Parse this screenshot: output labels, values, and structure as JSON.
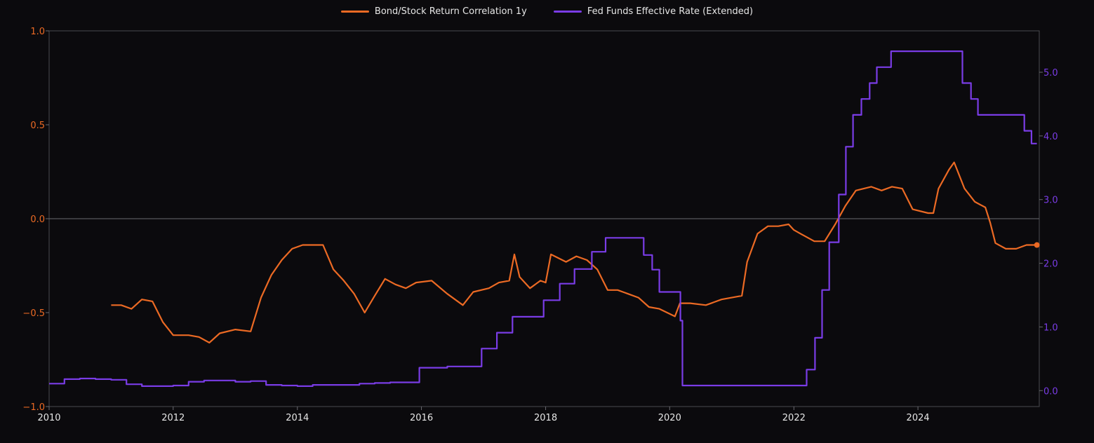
{
  "chart_data": {
    "type": "line",
    "title": "",
    "xlabel": "",
    "ylabel": "",
    "x_axis": {
      "type": "date",
      "range": [
        "2010-01-01",
        "2025-12-15"
      ],
      "tick_labels": [
        "2010",
        "2012",
        "2014",
        "2016",
        "2018",
        "2020",
        "2022",
        "2024"
      ]
    },
    "y_left": {
      "range": [
        -1.0,
        1.0
      ],
      "tick_values": [
        -1.0,
        -0.5,
        0.0,
        0.5,
        1.0
      ],
      "tick_labels": [
        "−1.0",
        "−0.5",
        "0.0",
        "0.5",
        "1.0"
      ],
      "color": "#ec6a24"
    },
    "y_right": {
      "range": [
        -0.25,
        5.65
      ],
      "tick_values": [
        0,
        1,
        2,
        3,
        4,
        5
      ],
      "tick_labels": [
        "0.0",
        "1.0",
        "2.0",
        "3.0",
        "4.0",
        "5.0"
      ],
      "color": "#7a3ce6"
    },
    "zero_line": 0.0,
    "grid": false,
    "legend_position": "top-center",
    "series": [
      {
        "name": "Bond/Stock Return Correlation 1y",
        "axis": "left",
        "color": "#ec6a24",
        "points": [
          [
            "2011-01-01",
            -0.46
          ],
          [
            "2011-03-01",
            -0.46
          ],
          [
            "2011-05-01",
            -0.48
          ],
          [
            "2011-07-01",
            -0.43
          ],
          [
            "2011-09-01",
            -0.44
          ],
          [
            "2011-11-01",
            -0.55
          ],
          [
            "2012-01-01",
            -0.62
          ],
          [
            "2012-04-01",
            -0.62
          ],
          [
            "2012-06-01",
            -0.63
          ],
          [
            "2012-08-01",
            -0.66
          ],
          [
            "2012-10-01",
            -0.61
          ],
          [
            "2013-01-01",
            -0.59
          ],
          [
            "2013-04-01",
            -0.6
          ],
          [
            "2013-06-01",
            -0.42
          ],
          [
            "2013-08-01",
            -0.3
          ],
          [
            "2013-10-01",
            -0.22
          ],
          [
            "2013-12-01",
            -0.16
          ],
          [
            "2014-02-01",
            -0.14
          ],
          [
            "2014-06-01",
            -0.14
          ],
          [
            "2014-08-01",
            -0.27
          ],
          [
            "2014-10-01",
            -0.33
          ],
          [
            "2014-12-01",
            -0.4
          ],
          [
            "2015-02-01",
            -0.5
          ],
          [
            "2015-04-01",
            -0.41
          ],
          [
            "2015-06-01",
            -0.32
          ],
          [
            "2015-08-01",
            -0.35
          ],
          [
            "2015-10-01",
            -0.37
          ],
          [
            "2015-12-01",
            -0.34
          ],
          [
            "2016-03-01",
            -0.33
          ],
          [
            "2016-06-01",
            -0.4
          ],
          [
            "2016-09-01",
            -0.46
          ],
          [
            "2016-11-01",
            -0.39
          ],
          [
            "2017-02-01",
            -0.37
          ],
          [
            "2017-04-01",
            -0.34
          ],
          [
            "2017-06-01",
            -0.33
          ],
          [
            "2017-07-01",
            -0.19
          ],
          [
            "2017-08-01",
            -0.31
          ],
          [
            "2017-10-01",
            -0.37
          ],
          [
            "2017-12-01",
            -0.33
          ],
          [
            "2018-01-01",
            -0.34
          ],
          [
            "2018-02-01",
            -0.19
          ],
          [
            "2018-05-01",
            -0.23
          ],
          [
            "2018-07-01",
            -0.2
          ],
          [
            "2018-09-01",
            -0.22
          ],
          [
            "2018-11-01",
            -0.27
          ],
          [
            "2019-01-01",
            -0.38
          ],
          [
            "2019-03-01",
            -0.38
          ],
          [
            "2019-05-01",
            -0.4
          ],
          [
            "2019-07-01",
            -0.42
          ],
          [
            "2019-09-01",
            -0.47
          ],
          [
            "2019-11-01",
            -0.48
          ],
          [
            "2020-02-01",
            -0.52
          ],
          [
            "2020-03-01",
            -0.45
          ],
          [
            "2020-05-01",
            -0.45
          ],
          [
            "2020-08-01",
            -0.46
          ],
          [
            "2020-11-01",
            -0.43
          ],
          [
            "2021-03-01",
            -0.41
          ],
          [
            "2021-04-01",
            -0.23
          ],
          [
            "2021-06-01",
            -0.08
          ],
          [
            "2021-08-01",
            -0.04
          ],
          [
            "2021-10-01",
            -0.04
          ],
          [
            "2021-12-01",
            -0.03
          ],
          [
            "2022-01-01",
            -0.06
          ],
          [
            "2022-03-01",
            -0.09
          ],
          [
            "2022-05-01",
            -0.12
          ],
          [
            "2022-07-01",
            -0.12
          ],
          [
            "2022-09-01",
            -0.03
          ],
          [
            "2022-11-01",
            0.07
          ],
          [
            "2023-01-01",
            0.15
          ],
          [
            "2023-04-01",
            0.17
          ],
          [
            "2023-06-01",
            0.15
          ],
          [
            "2023-08-01",
            0.17
          ],
          [
            "2023-10-01",
            0.16
          ],
          [
            "2023-12-01",
            0.05
          ],
          [
            "2024-03-01",
            0.03
          ],
          [
            "2024-04-01",
            0.03
          ],
          [
            "2024-05-01",
            0.16
          ],
          [
            "2024-07-01",
            0.26
          ],
          [
            "2024-08-01",
            0.3
          ],
          [
            "2024-10-01",
            0.16
          ],
          [
            "2024-12-01",
            0.09
          ],
          [
            "2025-02-01",
            0.06
          ],
          [
            "2025-03-01",
            -0.02
          ],
          [
            "2025-04-01",
            -0.13
          ],
          [
            "2025-06-01",
            -0.16
          ],
          [
            "2025-08-01",
            -0.16
          ],
          [
            "2025-10-01",
            -0.14
          ],
          [
            "2025-12-01",
            -0.14
          ]
        ]
      },
      {
        "name": "Fed Funds Effective Rate (Extended)",
        "axis": "right",
        "color": "#7a3ce6",
        "points": [
          [
            "2010-01-01",
            0.11
          ],
          [
            "2010-04-01",
            0.18
          ],
          [
            "2010-07-01",
            0.19
          ],
          [
            "2010-10-01",
            0.18
          ],
          [
            "2011-01-01",
            0.17
          ],
          [
            "2011-04-01",
            0.1
          ],
          [
            "2011-07-01",
            0.07
          ],
          [
            "2011-10-01",
            0.07
          ],
          [
            "2012-01-01",
            0.08
          ],
          [
            "2012-04-01",
            0.14
          ],
          [
            "2012-07-01",
            0.16
          ],
          [
            "2012-10-01",
            0.16
          ],
          [
            "2013-01-01",
            0.14
          ],
          [
            "2013-04-01",
            0.15
          ],
          [
            "2013-07-01",
            0.09
          ],
          [
            "2013-10-01",
            0.08
          ],
          [
            "2014-01-01",
            0.07
          ],
          [
            "2014-04-01",
            0.09
          ],
          [
            "2014-07-01",
            0.09
          ],
          [
            "2014-10-01",
            0.09
          ],
          [
            "2015-01-01",
            0.11
          ],
          [
            "2015-04-01",
            0.12
          ],
          [
            "2015-07-01",
            0.13
          ],
          [
            "2015-10-01",
            0.13
          ],
          [
            "2015-12-20",
            0.36
          ],
          [
            "2016-06-01",
            0.38
          ],
          [
            "2016-12-20",
            0.66
          ],
          [
            "2017-03-20",
            0.91
          ],
          [
            "2017-06-20",
            1.16
          ],
          [
            "2017-12-20",
            1.42
          ],
          [
            "2018-03-25",
            1.68
          ],
          [
            "2018-06-20",
            1.91
          ],
          [
            "2018-09-30",
            2.18
          ],
          [
            "2018-12-20",
            2.4
          ],
          [
            "2019-08-01",
            2.13
          ],
          [
            "2019-09-20",
            1.9
          ],
          [
            "2019-11-01",
            1.55
          ],
          [
            "2020-03-04",
            1.1
          ],
          [
            "2020-03-16",
            0.08
          ],
          [
            "2020-06-01",
            0.08
          ],
          [
            "2021-01-01",
            0.08
          ],
          [
            "2021-06-01",
            0.08
          ],
          [
            "2022-01-01",
            0.08
          ],
          [
            "2022-03-17",
            0.33
          ],
          [
            "2022-05-05",
            0.83
          ],
          [
            "2022-06-16",
            1.58
          ],
          [
            "2022-07-28",
            2.33
          ],
          [
            "2022-09-22",
            3.08
          ],
          [
            "2022-11-03",
            3.83
          ],
          [
            "2022-12-15",
            4.33
          ],
          [
            "2023-02-02",
            4.58
          ],
          [
            "2023-03-23",
            4.83
          ],
          [
            "2023-05-04",
            5.08
          ],
          [
            "2023-07-27",
            5.33
          ],
          [
            "2024-09-19",
            4.83
          ],
          [
            "2024-11-08",
            4.58
          ],
          [
            "2024-12-19",
            4.33
          ],
          [
            "2025-09-18",
            4.08
          ],
          [
            "2025-10-30",
            3.88
          ],
          [
            "2025-12-01",
            3.88
          ]
        ]
      }
    ]
  }
}
